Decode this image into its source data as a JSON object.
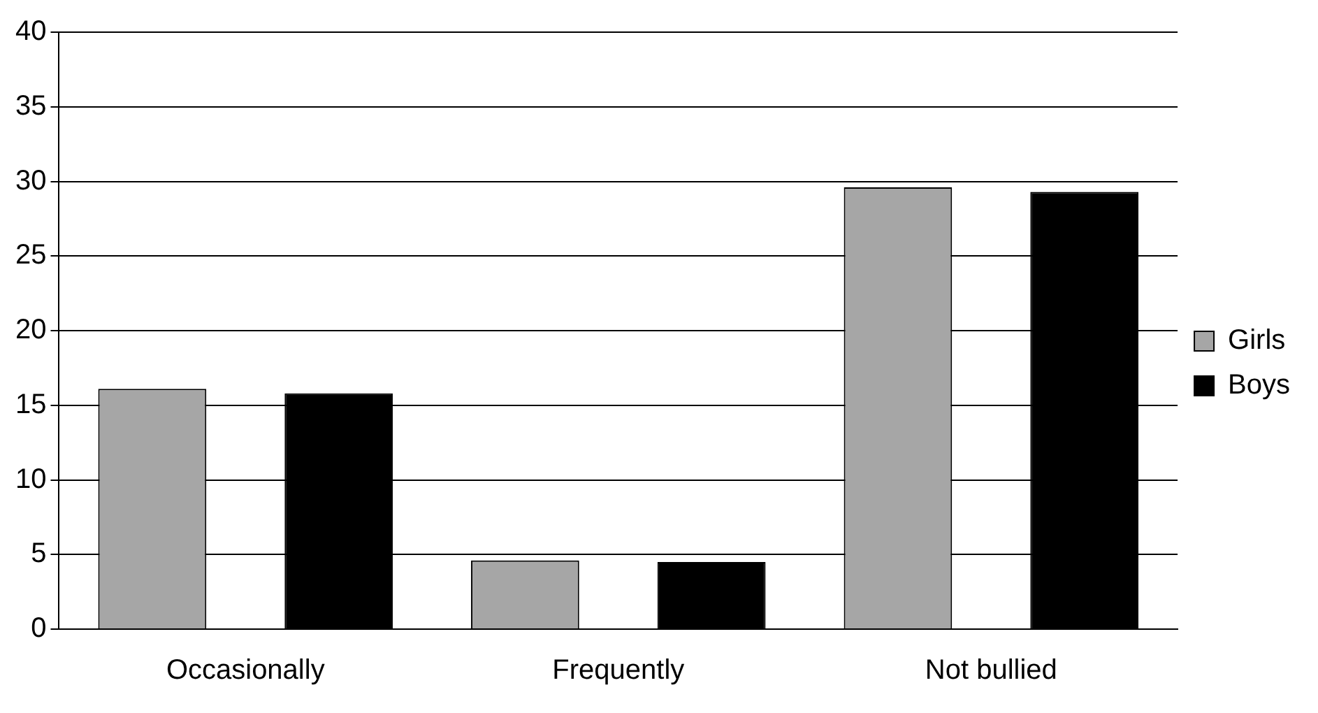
{
  "chart_data": {
    "type": "bar",
    "categories": [
      "Occasionally",
      "Frequently",
      "Not bullied"
    ],
    "series": [
      {
        "name": "Girls",
        "color": "#a6a6a6",
        "values": [
          16.1,
          4.6,
          29.6
        ]
      },
      {
        "name": "Boys",
        "color": "#000000",
        "values": [
          15.8,
          4.5,
          29.3
        ]
      }
    ],
    "ylim": [
      0,
      40
    ],
    "yticks": [
      0,
      5,
      10,
      15,
      20,
      25,
      30,
      35,
      40
    ],
    "grid": "y",
    "legend": "right"
  }
}
